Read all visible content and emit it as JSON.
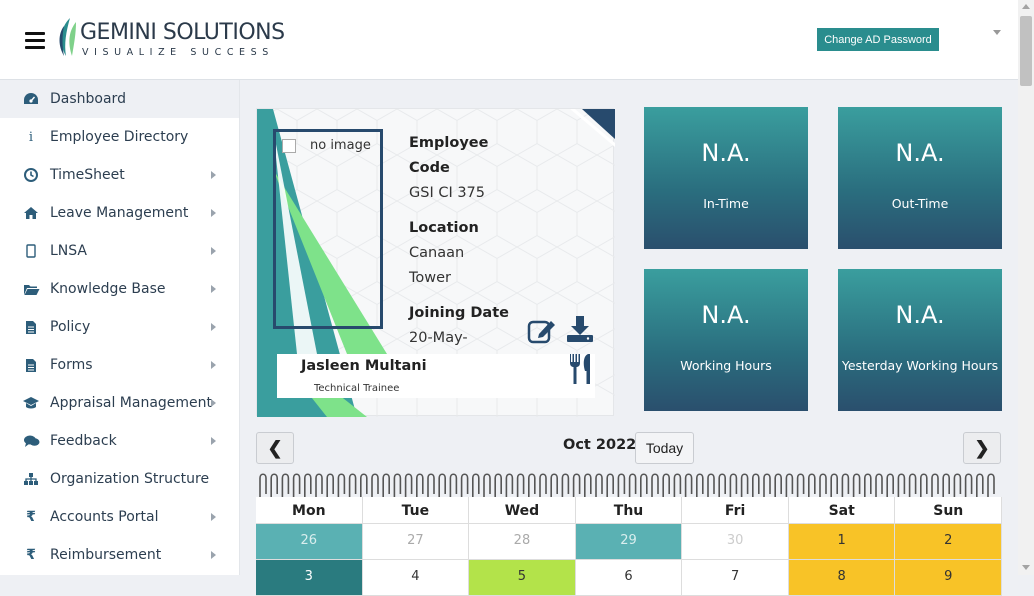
{
  "header": {
    "logo_text": "GEMINI SOLUTIONS",
    "logo_tagline": "VISUALIZE SUCCESS",
    "change_password_label": "Change AD Password"
  },
  "sidebar": {
    "items": [
      {
        "label": "Dashboard",
        "icon": "dashboard-icon"
      },
      {
        "label": "Employee Directory",
        "icon": "info-icon"
      },
      {
        "label": "TimeSheet",
        "icon": "clock-icon"
      },
      {
        "label": "Leave Management",
        "icon": "home-icon"
      },
      {
        "label": "LNSA",
        "icon": "mobile-icon"
      },
      {
        "label": "Knowledge Base",
        "icon": "folder-open-icon"
      },
      {
        "label": "Policy",
        "icon": "document-icon"
      },
      {
        "label": "Forms",
        "icon": "document-icon"
      },
      {
        "label": "Appraisal Management",
        "icon": "graduation-cap-icon"
      },
      {
        "label": "Feedback",
        "icon": "comments-icon"
      },
      {
        "label": "Organization Structure",
        "icon": "sitemap-icon"
      },
      {
        "label": "Accounts Portal",
        "icon": "rupee-icon"
      },
      {
        "label": "Reimbursement",
        "icon": "rupee-icon"
      }
    ],
    "colors": {
      "icon": "#2d5d7a",
      "active_bg": "#eef0f4"
    }
  },
  "profile": {
    "photo_alt": "no image",
    "employee_code_label": "Employee",
    "employee_code_label2": "Code",
    "employee_code": "GSI CI 375",
    "location_label": "Location",
    "location_line1": "Canaan",
    "location_line2": "Tower",
    "joining_label": "Joining Date",
    "joining_partial": "20-May-",
    "name": "Jasleen Multani",
    "role": "Technical Trainee"
  },
  "stats": [
    {
      "value": "N.A.",
      "label": "In-Time"
    },
    {
      "value": "N.A.",
      "label": "Out-Time"
    },
    {
      "value": "N.A.",
      "label": "Working Hours"
    },
    {
      "value": "N.A.",
      "label": "Yesterday Working Hours"
    }
  ],
  "calendar": {
    "title": "Oct 2022",
    "today_label": "Today",
    "prev_label": "❮",
    "next_label": "❯",
    "days": [
      "Mon",
      "Tue",
      "Wed",
      "Thu",
      "Fri",
      "Sat",
      "Sun"
    ],
    "row1": [
      "26",
      "27",
      "28",
      "29",
      "30",
      "1",
      "2"
    ],
    "row2": [
      "3",
      "4",
      "5",
      "6",
      "7",
      "8",
      "9"
    ],
    "colors": {
      "teal": "#5ab1b3",
      "yellow": "#f8c327",
      "green": "#b3e34a"
    }
  }
}
